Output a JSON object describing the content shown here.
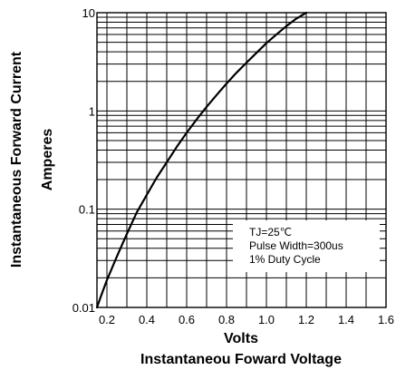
{
  "chart_data": {
    "type": "line",
    "xlabel": "Volts",
    "xlabel_sub": "Instantaneou Foward Voltage",
    "ylabel": "Instantaneous Forward Current",
    "ylabel_sub": "Amperes",
    "xlim": [
      0.15,
      1.6
    ],
    "ylim": [
      0.01,
      10
    ],
    "yscale": "log",
    "grid": true,
    "x_ticks": [
      "0.2",
      "0.4",
      "0.6",
      "0.8",
      "1.0",
      "1.2",
      "1.4",
      "1.6"
    ],
    "y_ticks": [
      "0.01",
      "0.1",
      "1",
      "10"
    ],
    "legend_lines": [
      "TJ=25℃",
      "Pulse Width=300us",
      "1% Duty Cycle"
    ],
    "series": [
      {
        "x": [
          0.15,
          0.17,
          0.2,
          0.25,
          0.3,
          0.35,
          0.4,
          0.45,
          0.5,
          0.55,
          0.6,
          0.65,
          0.7,
          0.75,
          0.8,
          0.85,
          0.9,
          0.95,
          1.0,
          1.05,
          1.1,
          1.15,
          1.2
        ],
        "y": [
          0.01,
          0.013,
          0.019,
          0.033,
          0.056,
          0.093,
          0.14,
          0.21,
          0.3,
          0.43,
          0.6,
          0.82,
          1.1,
          1.45,
          1.9,
          2.45,
          3.1,
          3.9,
          4.9,
          6.0,
          7.3,
          8.7,
          10.0
        ]
      }
    ]
  }
}
